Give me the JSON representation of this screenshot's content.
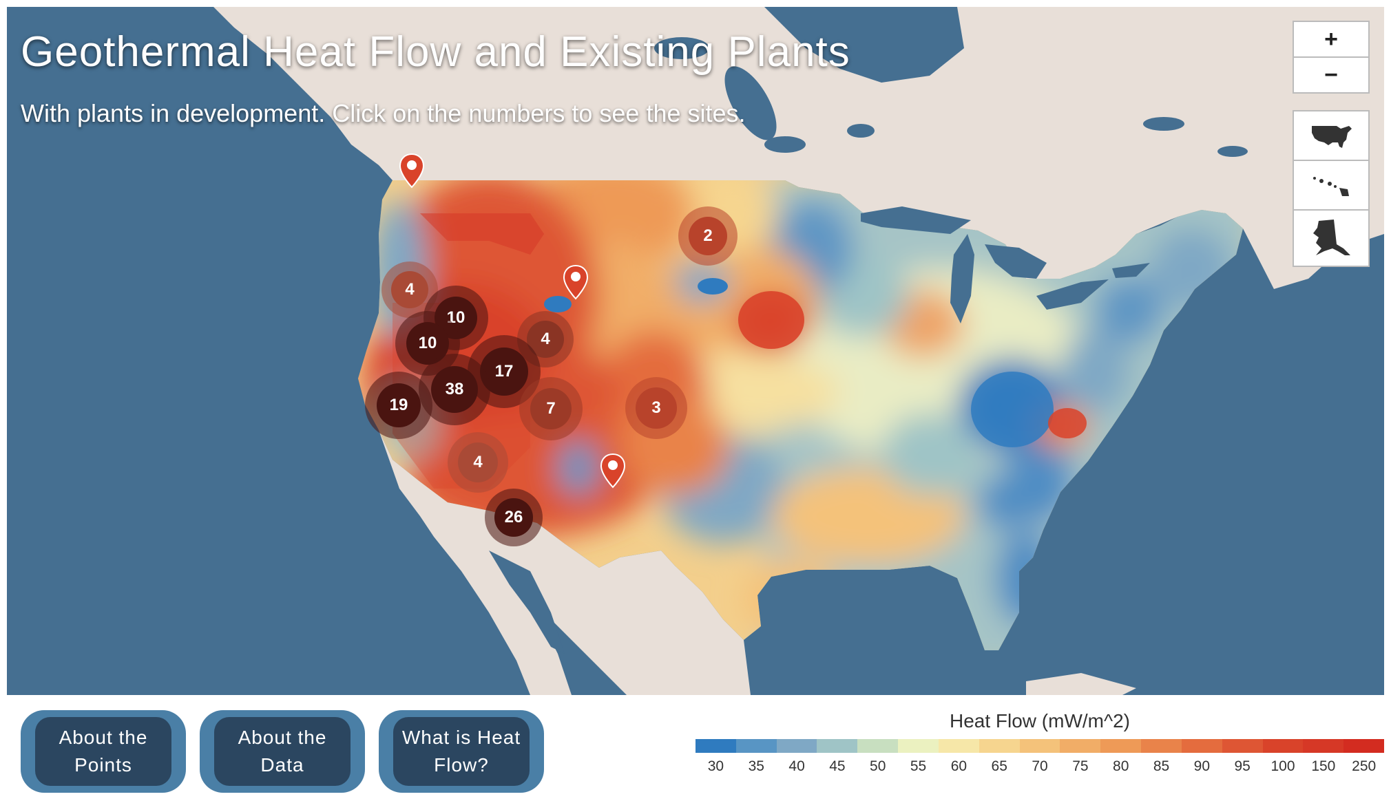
{
  "map": {
    "title": "Geothermal Heat Flow and Existing Plants",
    "subtitle": "With plants in development. Click on the numbers to see the sites.",
    "zoom_in_label": "+",
    "zoom_out_label": "−",
    "extent_buttons": [
      "contiguous-us-icon",
      "hawaii-icon",
      "alaska-icon"
    ],
    "clusters": [
      {
        "label": "2",
        "color": "#b8432b"
      },
      {
        "label": "4",
        "color": "#a94a36"
      },
      {
        "label": "10",
        "color": "#4a1410"
      },
      {
        "label": "10",
        "color": "#4a1410"
      },
      {
        "label": "4",
        "color": "#8a3424"
      },
      {
        "label": "17",
        "color": "#4a1410"
      },
      {
        "label": "38",
        "color": "#4a1410"
      },
      {
        "label": "19",
        "color": "#4a1410"
      },
      {
        "label": "7",
        "color": "#9c3a27"
      },
      {
        "label": "3",
        "color": "#b8432b"
      },
      {
        "label": "4",
        "color": "#a94a36"
      },
      {
        "label": "26",
        "color": "#4a1410"
      }
    ],
    "markers": [
      "marker-washington",
      "marker-idaho",
      "marker-new-mexico"
    ]
  },
  "buttons": {
    "about_points": "About the Points",
    "about_data": "About the Data",
    "what_is_heat_flow": "What is Heat Flow?"
  },
  "legend": {
    "title": "Heat Flow (mW/m^2)",
    "labels": [
      "30",
      "35",
      "40",
      "45",
      "50",
      "55",
      "60",
      "65",
      "70",
      "75",
      "80",
      "85",
      "90",
      "95",
      "100",
      "150",
      "250"
    ],
    "colors": [
      "#2f7bbf",
      "#5895c4",
      "#7fa8c5",
      "#9fc4c6",
      "#c8dfc0",
      "#ebf1c0",
      "#f6e7a8",
      "#f6d58f",
      "#f4c27a",
      "#f1ad67",
      "#ee9a57",
      "#e9834a",
      "#e46c3e",
      "#de5634",
      "#d9432a",
      "#d63826",
      "#d32c20"
    ]
  },
  "colors": {
    "ocean": "#456f91",
    "land": "#e8dfd8",
    "button_outer": "#4a7fa6",
    "button_inner": "#2b4660"
  }
}
